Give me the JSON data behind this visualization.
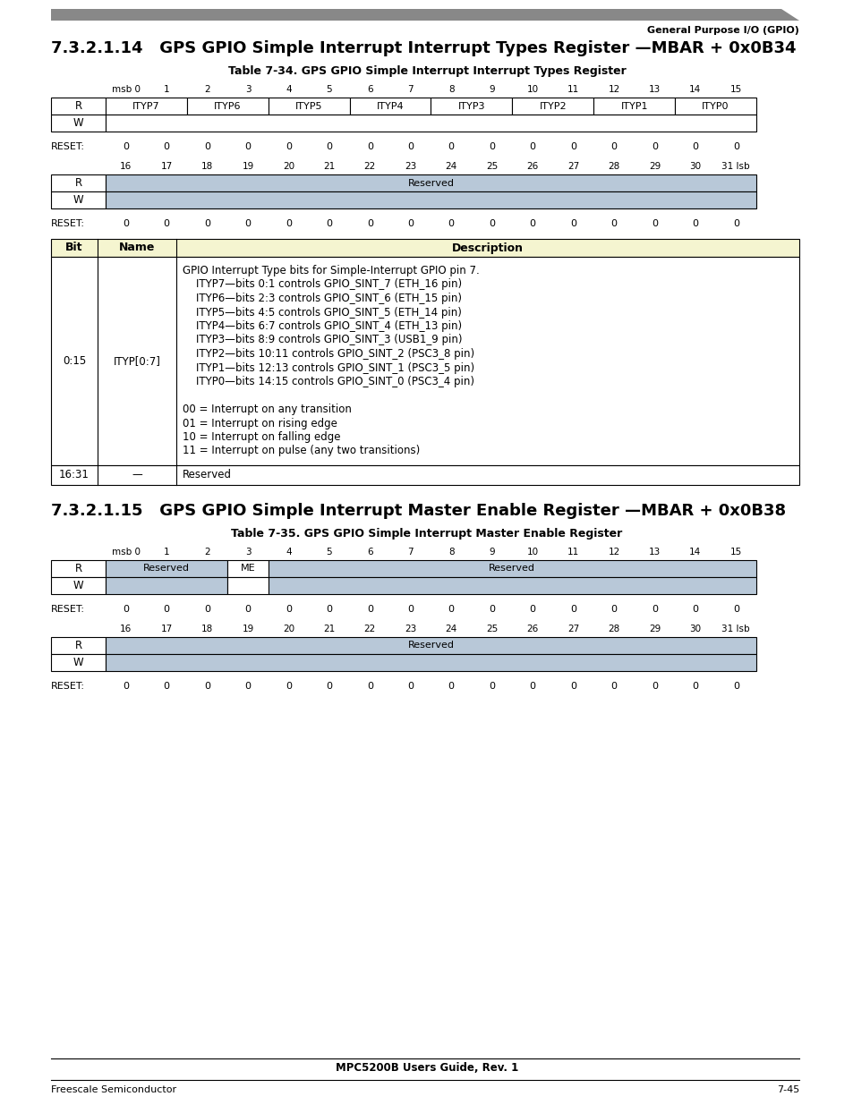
{
  "page_header_right": "General Purpose I/O (GPIO)",
  "section1_title": "7.3.2.1.14   GPS GPIO Simple Interrupt Interrupt Types Register —MBAR + 0x0B34",
  "table1_title": "Table 7-34. GPS GPIO Simple Interrupt Interrupt Types Register",
  "section2_title": "7.3.2.1.15   GPS GPIO Simple Interrupt Master Enable Register —MBAR + 0x0B38",
  "table2_title": "Table 7-35. GPS GPIO Simple Interrupt Master Enable Register",
  "footer_center": "MPC5200B Users Guide, Rev. 1",
  "footer_left": "Freescale Semiconductor",
  "footer_right": "7-45",
  "reg_bits_top": [
    "msb 0",
    "1",
    "2",
    "3",
    "4",
    "5",
    "6",
    "7",
    "8",
    "9",
    "10",
    "11",
    "12",
    "13",
    "14",
    "15"
  ],
  "reg_bits_bottom": [
    "16",
    "17",
    "18",
    "19",
    "20",
    "21",
    "22",
    "23",
    "24",
    "25",
    "26",
    "27",
    "28",
    "29",
    "30",
    "31 lsb"
  ],
  "reg1_top_cells": [
    {
      "label": "ITYP7",
      "span": 2,
      "color": "#ffffff"
    },
    {
      "label": "ITYP6",
      "span": 2,
      "color": "#ffffff"
    },
    {
      "label": "ITYP5",
      "span": 2,
      "color": "#ffffff"
    },
    {
      "label": "ITYP4",
      "span": 2,
      "color": "#ffffff"
    },
    {
      "label": "ITYP3",
      "span": 2,
      "color": "#ffffff"
    },
    {
      "label": "ITYP2",
      "span": 2,
      "color": "#ffffff"
    },
    {
      "label": "ITYP1",
      "span": 2,
      "color": "#ffffff"
    },
    {
      "label": "ITYP0",
      "span": 2,
      "color": "#ffffff"
    }
  ],
  "reg1_bottom_cells": [
    {
      "label": "Reserved",
      "span": 16,
      "color": "#b8c8d8"
    }
  ],
  "reg2_top_cells": [
    {
      "label": "Reserved",
      "span": 3,
      "color": "#b8c8d8"
    },
    {
      "label": "ME",
      "span": 1,
      "color": "#ffffff"
    },
    {
      "label": "Reserved",
      "span": 12,
      "color": "#b8c8d8"
    }
  ],
  "reg2_bottom_cells": [
    {
      "label": "Reserved",
      "span": 16,
      "color": "#b8c8d8"
    }
  ],
  "desc_table_header_color": "#f5f5d0",
  "reserved_color": "#b8c8d8",
  "white": "#ffffff",
  "black": "#000000",
  "header_bar_color": "#888888"
}
